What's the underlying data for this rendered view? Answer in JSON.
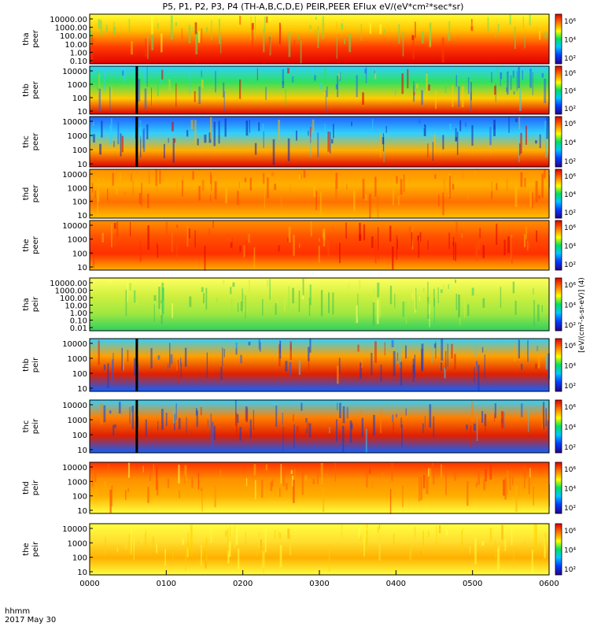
{
  "chart_data": {
    "type": "heatmap",
    "title": "P5, P1, P2, P3, P4 (TH-A,B,C,D,E) PEIR,PEER EFlux eV/(eV*cm²*sec*sr)",
    "x_axis": {
      "ticks": [
        "0000",
        "0100",
        "0200",
        "0300",
        "0400",
        "0500",
        "0600"
      ],
      "label_line1": "hhmm",
      "label_line2": "2017 May 30"
    },
    "colorbar_label": "[eV/(cm²-s-sr-eV)] (4)",
    "colorbar_ticks": [
      "10⁶",
      "10⁴",
      "10²"
    ],
    "panels": [
      {
        "probe": "tha",
        "species": "peer",
        "ylabels": [
          "10000.00",
          "1000.00",
          "100.00",
          "10.00",
          "1.00",
          "0.10"
        ]
      },
      {
        "probe": "thb",
        "species": "peer",
        "ylabels": [
          "10000",
          "1000",
          "100",
          "10"
        ]
      },
      {
        "probe": "thc",
        "species": "peer",
        "ylabels": [
          "10000",
          "1000",
          "100",
          "10"
        ]
      },
      {
        "probe": "thd",
        "species": "peer",
        "ylabels": [
          "10000",
          "1000",
          "100",
          "10"
        ]
      },
      {
        "probe": "the",
        "species": "peer",
        "ylabels": [
          "10000",
          "1000",
          "100",
          "10"
        ]
      },
      {
        "probe": "tha",
        "species": "peir",
        "ylabels": [
          "10000.00",
          "1000.00",
          "100.00",
          "10.00",
          "1.00",
          "0.10",
          "0.01"
        ]
      },
      {
        "probe": "thb",
        "species": "peir",
        "ylabels": [
          "10000",
          "1000",
          "100",
          "10"
        ]
      },
      {
        "probe": "thc",
        "species": "peir",
        "ylabels": [
          "10000",
          "1000",
          "100",
          "10"
        ]
      },
      {
        "probe": "thd",
        "species": "peir",
        "ylabels": [
          "10000",
          "1000",
          "100",
          "10"
        ]
      },
      {
        "probe": "the",
        "species": "peir",
        "ylabels": [
          "10000",
          "1000",
          "100",
          "10"
        ]
      }
    ]
  }
}
